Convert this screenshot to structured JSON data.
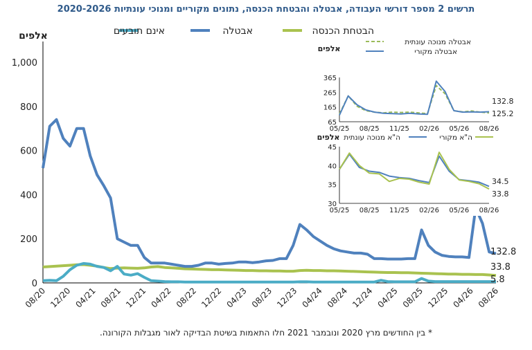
{
  "title": "תרשים 2 מספר דורשי העבודה, אבטלה והבטחת הכנסה, נתונים מקוריים ומנוכי עונתיות 2020-2026",
  "footnote": "* בין החודשים מרץ 2020 ונובמבר 2021 חלו התאמות בשיטת הבדיקה לאור מגבלות הקורונה.",
  "colors": {
    "unemployment": "#4f81bd",
    "income": "#a9c24f",
    "not_claimed": "#4bacc6",
    "sa_dash": "#9bbb59"
  },
  "chart_data": [
    {
      "type": "line",
      "unit_label": "אלפים",
      "ylim": [
        0,
        1050
      ],
      "yticks": [
        "0",
        "200",
        "400",
        "600",
        "800",
        "1,000"
      ],
      "ytick_values": [
        0,
        200,
        400,
        600,
        800,
        1000
      ],
      "xticks": [
        "08/20",
        "12/20",
        "04/21",
        "08/21",
        "12/21",
        "04/22",
        "08/22",
        "12/22",
        "04/23",
        "08/23",
        "12/23",
        "04/24",
        "08/24",
        "12/24",
        "04/25",
        "08/25",
        "12/25",
        "04/26",
        "08/26"
      ],
      "legend": [
        "הבטחת הכנסה",
        "אבטלה",
        "אינם תובעים"
      ],
      "end_labels": [
        "132.8",
        "33.8",
        "5.8"
      ],
      "series": [
        {
          "name": "אבטלה",
          "values": [
            520,
            710,
            740,
            655,
            620,
            700,
            700,
            575,
            490,
            440,
            385,
            200,
            185,
            170,
            170,
            115,
            90,
            90,
            90,
            85,
            80,
            75,
            75,
            80,
            90,
            90,
            85,
            88,
            90,
            95,
            95,
            92,
            95,
            100,
            102,
            110,
            110,
            170,
            265,
            240,
            210,
            190,
            170,
            155,
            145,
            140,
            135,
            135,
            130,
            110,
            110,
            108,
            108,
            108,
            110,
            110,
            240,
            170,
            140,
            125,
            120,
            118,
            118,
            115,
            340,
            270,
            140,
            132.8
          ]
        },
        {
          "name": "הבטחת הכנסה",
          "values": [
            72,
            74,
            76,
            78,
            80,
            82,
            83,
            80,
            76,
            70,
            65,
            67,
            68,
            67,
            66,
            68,
            72,
            74,
            70,
            68,
            66,
            64,
            63,
            62,
            61,
            60,
            60,
            59,
            58,
            57,
            56,
            56,
            55,
            55,
            54,
            54,
            53,
            53,
            56,
            57,
            56,
            56,
            55,
            55,
            54,
            53,
            52,
            51,
            50,
            49,
            48,
            47,
            47,
            46,
            46,
            45,
            44,
            43,
            42,
            41,
            40,
            40,
            39,
            39,
            38,
            38,
            36,
            33.8
          ]
        },
        {
          "name": "אינם תובעים",
          "values": [
            10,
            12,
            10,
            30,
            60,
            80,
            88,
            85,
            75,
            70,
            55,
            75,
            40,
            35,
            42,
            25,
            10,
            8,
            6,
            5,
            5,
            4,
            4,
            4,
            4,
            4,
            4,
            4,
            4,
            4,
            4,
            4,
            4,
            4,
            4,
            4,
            4,
            4,
            5,
            5,
            4,
            4,
            4,
            4,
            4,
            4,
            4,
            4,
            4,
            4,
            12,
            6,
            5,
            5,
            5,
            5,
            20,
            8,
            6,
            6,
            6,
            6,
            6,
            6,
            6,
            6,
            6,
            5.8
          ]
        }
      ]
    },
    {
      "type": "line",
      "unit_label": "אלפים",
      "ylim": [
        65,
        365
      ],
      "yticks": [
        "65",
        "165",
        "265",
        "365"
      ],
      "ytick_values": [
        65,
        165,
        265,
        365
      ],
      "xticks": [
        "05/25",
        "08/25",
        "11/25",
        "02/26",
        "05/26",
        "08/26"
      ],
      "end_labels": [
        "132.8",
        "125.2"
      ],
      "series": [
        {
          "name": "אבטלה מנוכה עונתית",
          "values": [
            118,
            240,
            170,
            140,
            130,
            125,
            130,
            128,
            130,
            125,
            120,
            310,
            255,
            140,
            132,
            138,
            130,
            125.2
          ]
        },
        {
          "name": "אבטלה מקורי",
          "values": [
            110,
            240,
            180,
            145,
            130,
            122,
            120,
            118,
            122,
            118,
            115,
            340,
            270,
            140,
            130,
            132,
            130,
            132.8
          ]
        }
      ]
    },
    {
      "type": "line",
      "unit_label": "אלפים",
      "ylim": [
        30,
        45
      ],
      "yticks": [
        "30",
        "35",
        "40",
        "45"
      ],
      "ytick_values": [
        30,
        35,
        40,
        45
      ],
      "xticks": [
        "05/25",
        "08/25",
        "11/25",
        "02/26",
        "05/26",
        "08/26"
      ],
      "end_labels": [
        "34.5",
        "33.8"
      ],
      "series": [
        {
          "name": "ה\"א מנוכה עונתית",
          "values": [
            39,
            43,
            39.5,
            38.5,
            38.2,
            37.2,
            36.8,
            36.6,
            36,
            35.5,
            42.5,
            38.5,
            36.3,
            36,
            35.6,
            34.5
          ]
        },
        {
          "name": "ה\"א מקורי",
          "values": [
            39,
            43.3,
            40,
            38,
            37.8,
            35.8,
            36.6,
            36.4,
            35.6,
            35.1,
            43.5,
            39,
            36.2,
            35.8,
            35.2,
            33.8
          ]
        }
      ]
    }
  ]
}
